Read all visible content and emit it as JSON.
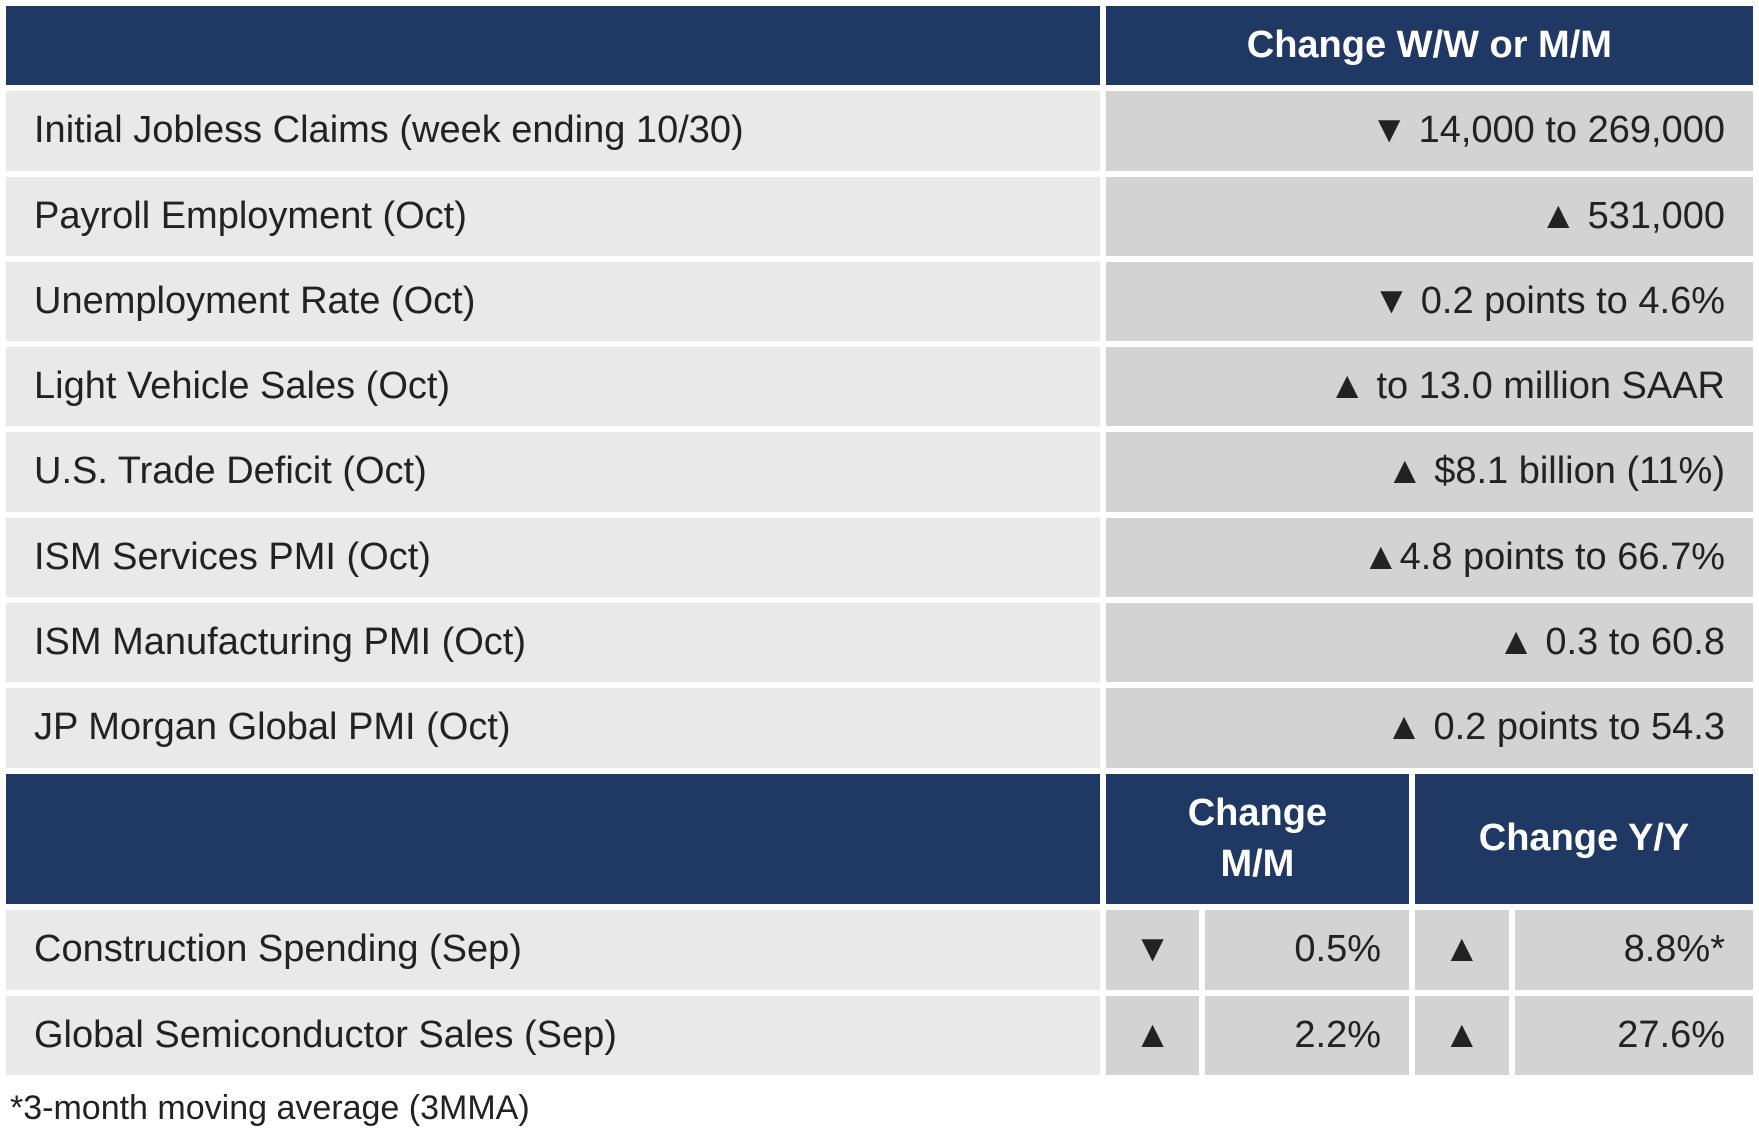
{
  "colors": {
    "header_bg": "#203864",
    "header_text": "#ffffff",
    "label_bg": "#e9e9e9",
    "value_bg": "#d3d3d3",
    "text": "#222222",
    "page_bg": "#ffffff"
  },
  "typography": {
    "body_fontsize_pt": 29,
    "footnote_fontsize_pt": 26,
    "header_weight": "bold"
  },
  "icons": {
    "up": "▲",
    "down": "▼"
  },
  "section1": {
    "header": "Change W/W or M/M",
    "rows": [
      {
        "label": "Initial Jobless Claims (week ending 10/30)",
        "arrow": "down",
        "value": "14,000 to 269,000"
      },
      {
        "label": "Payroll Employment (Oct)",
        "arrow": "up",
        "value": "531,000"
      },
      {
        "label": "Unemployment Rate (Oct)",
        "arrow": "down",
        "value": "0.2 points to 4.6%"
      },
      {
        "label": "Light Vehicle Sales (Oct)",
        "arrow": "up",
        "value": "to 13.0 million SAAR"
      },
      {
        "label": "U.S. Trade Deficit (Oct)",
        "arrow": "up",
        "value": "$8.1 billion (11%)"
      },
      {
        "label": "ISM Services PMI (Oct)",
        "arrow": "up",
        "value": "4.8 points to 66.7%",
        "tight": true
      },
      {
        "label": "ISM Manufacturing PMI (Oct)",
        "arrow": "up",
        "value": "0.3 to 60.8"
      },
      {
        "label": "JP Morgan Global PMI (Oct)",
        "arrow": "up",
        "value": "0.2 points to 54.3"
      }
    ]
  },
  "section2": {
    "header_mm": "Change M/M",
    "header_yy": "Change Y/Y",
    "rows": [
      {
        "label": "Construction Spending (Sep)",
        "mm_arrow": "down",
        "mm_value": "0.5%",
        "yy_arrow": "up",
        "yy_value": "8.8%*"
      },
      {
        "label": "Global Semiconductor Sales (Sep)",
        "mm_arrow": "up",
        "mm_value": "2.2%",
        "yy_arrow": "up",
        "yy_value": "27.6%"
      }
    ]
  },
  "footnote": "*3-month moving average (3MMA)"
}
